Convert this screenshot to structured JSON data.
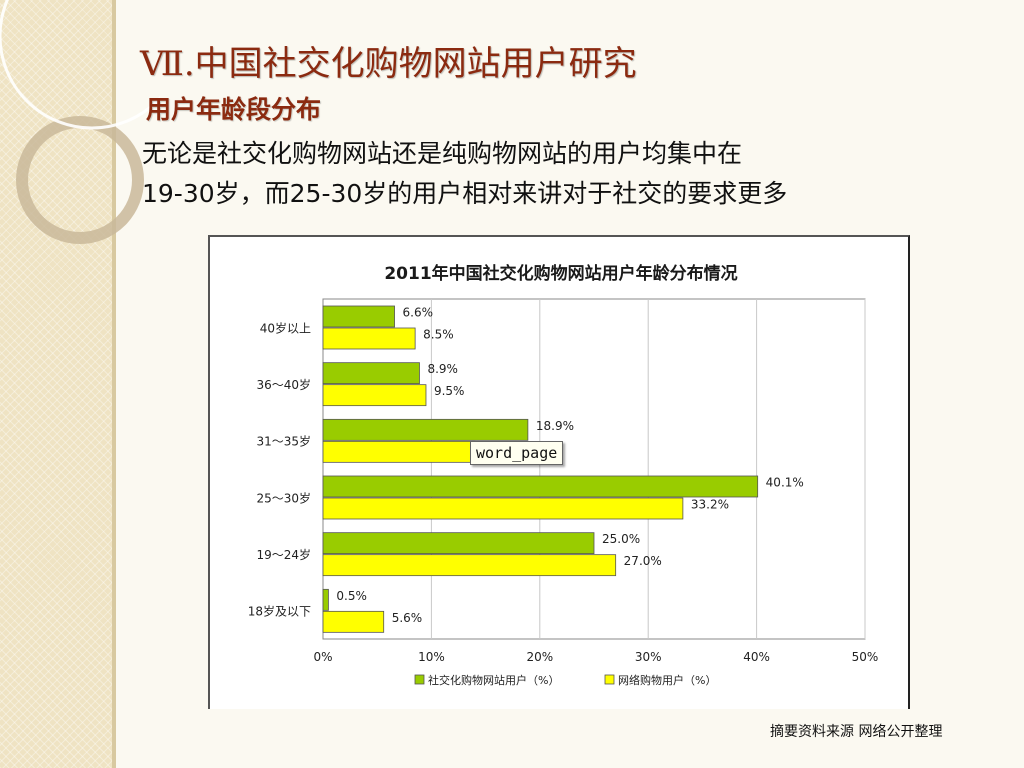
{
  "slide": {
    "title": "Ⅶ.中国社交化购物网站用户研究",
    "subtitle": "用户年龄段分布",
    "body_line1": "无论是社交化购物网站还是纯购物网站的用户均集中在",
    "body_line2": "19-30岁，而25-30岁的用户相对来讲对于社交的要求更多",
    "source": "摘要资料来源 网络公开整理",
    "tooltip": "word_page"
  },
  "colors": {
    "title": "#8b2a10",
    "series_green": "#99cc00",
    "series_yellow": "#ffff00",
    "strip": "#efe3c3"
  },
  "chart_data": {
    "type": "bar",
    "orientation": "horizontal",
    "title": "2011年中国社交化购物网站用户年龄分布情况",
    "categories": [
      "40岁以上",
      "36～40岁",
      "31～35岁",
      "25～30岁",
      "19～24岁",
      "18岁及以下"
    ],
    "series": [
      {
        "name": "社交化购物网站用户（%）",
        "color": "#99cc00",
        "values": [
          6.6,
          8.9,
          18.9,
          40.1,
          25.0,
          0.5
        ],
        "labels": [
          "6.6%",
          "8.9%",
          "18.9%",
          "40.1%",
          "25.0%",
          "0.5%"
        ]
      },
      {
        "name": "网络购物用户（%）",
        "color": "#ffff00",
        "values": [
          8.5,
          9.5,
          14.0,
          33.2,
          27.0,
          5.6
        ],
        "labels": [
          "8.5%",
          "9.5%",
          "",
          "33.2%",
          "27.0%",
          "5.6%"
        ]
      }
    ],
    "xlim": [
      0,
      50
    ],
    "xticks": [
      0,
      10,
      20,
      30,
      40,
      50
    ],
    "xtick_labels": [
      "0%",
      "10%",
      "20%",
      "30%",
      "40%",
      "50%"
    ],
    "grid": true,
    "legend_position": "bottom"
  }
}
